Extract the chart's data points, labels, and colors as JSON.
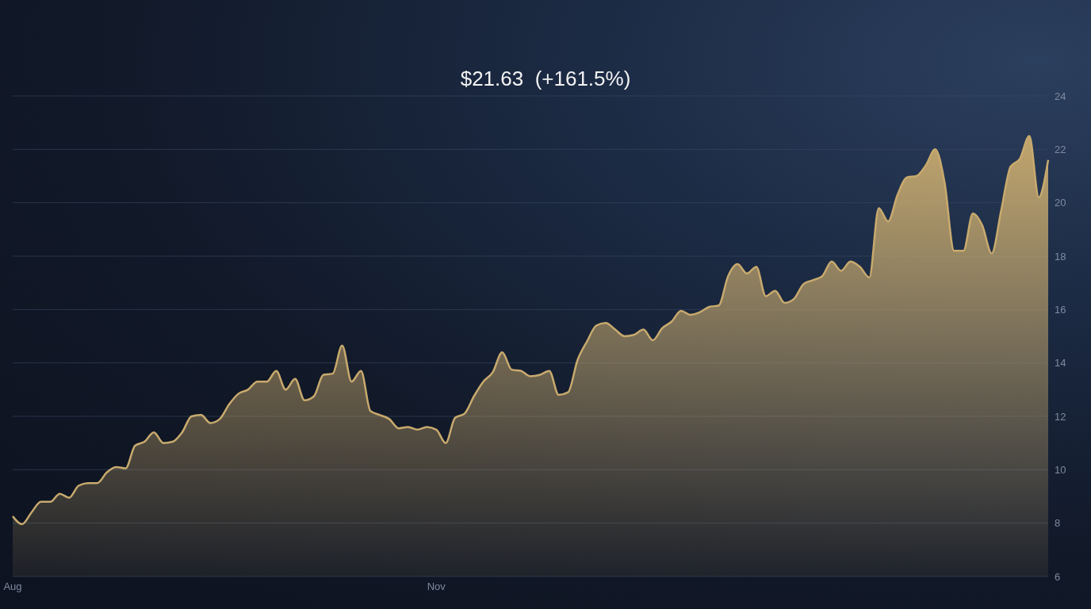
{
  "chart_data": {
    "type": "area",
    "title": "$21.63  (+161.5%)",
    "categories": [
      "Aug",
      null,
      null,
      null,
      null,
      null,
      null,
      null,
      null,
      null,
      null,
      null,
      null,
      null,
      null,
      null,
      null,
      null,
      null,
      null,
      null,
      null,
      null,
      null,
      null,
      null,
      null,
      null,
      null,
      null,
      null,
      null,
      null,
      null,
      null,
      null,
      null,
      null,
      null,
      null,
      null,
      null,
      null,
      null,
      null,
      "Nov",
      null,
      null,
      null,
      null,
      null,
      null,
      null,
      null,
      null,
      null,
      null,
      null,
      null,
      null,
      null,
      null,
      null,
      null,
      null,
      null,
      null,
      null,
      null,
      null,
      null,
      null,
      null,
      null,
      null,
      null,
      null,
      null,
      null,
      null,
      null,
      null,
      null,
      null,
      null,
      null,
      null,
      null,
      null,
      null,
      null,
      null,
      null,
      null,
      null,
      null,
      null,
      null,
      null,
      null,
      null,
      null,
      null,
      null,
      null,
      null,
      null,
      null,
      null,
      null,
      null
    ],
    "series": [
      {
        "color": "#c8aa6e",
        "values": [
          8.26,
          7.96,
          8.4,
          8.8,
          8.8,
          9.1,
          8.95,
          9.4,
          9.5,
          9.5,
          9.9,
          10.1,
          10.05,
          10.9,
          11.05,
          11.4,
          11.0,
          11.05,
          11.4,
          12.0,
          12.05,
          11.75,
          11.9,
          12.45,
          12.85,
          13.0,
          13.3,
          13.3,
          13.7,
          13.0,
          13.4,
          12.6,
          12.75,
          13.55,
          13.6,
          14.65,
          13.3,
          13.7,
          12.2,
          12.05,
          11.9,
          11.55,
          11.6,
          11.5,
          11.6,
          11.5,
          11.0,
          11.95,
          12.1,
          12.75,
          13.3,
          13.65,
          14.4,
          13.75,
          13.7,
          13.5,
          13.55,
          13.7,
          12.8,
          12.9,
          14.1,
          14.8,
          15.4,
          15.5,
          15.25,
          15.0,
          15.05,
          15.25,
          14.85,
          15.3,
          15.55,
          15.95,
          15.8,
          15.9,
          16.1,
          16.15,
          17.25,
          17.7,
          17.35,
          17.6,
          16.5,
          16.7,
          16.25,
          16.4,
          16.95,
          17.1,
          17.25,
          17.8,
          17.45,
          17.8,
          17.6,
          17.2,
          19.8,
          19.3,
          20.3,
          20.95,
          21.0,
          21.4,
          22.0,
          20.75,
          18.2,
          18.2,
          19.6,
          19.15,
          18.1,
          19.7,
          21.35,
          21.65,
          22.5,
          20.2,
          21.6
        ]
      }
    ],
    "ylim": [
      6,
      24
    ],
    "yticks": [
      6,
      8,
      10,
      12,
      14,
      16,
      18,
      20,
      22,
      24
    ],
    "grid": "y",
    "marker": "none",
    "line_style": "solid"
  }
}
